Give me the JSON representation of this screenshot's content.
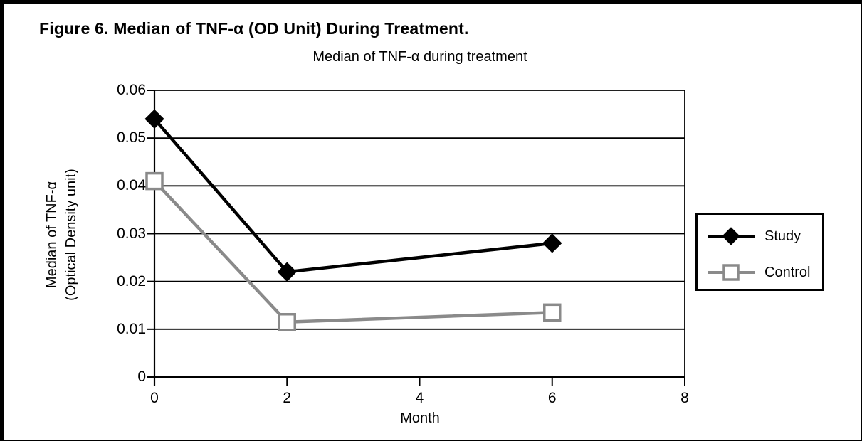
{
  "figure_title": "Figure 6. Median of TNF-α (OD Unit) During Treatment.",
  "chart_data": {
    "type": "line",
    "title": "Median of TNF-α during treatment",
    "xlabel": "Month",
    "ylabel_lines": [
      "Median of TNF-α",
      "(Optical Density unit)"
    ],
    "x": [
      0,
      2,
      6
    ],
    "series": [
      {
        "name": "Study",
        "values": [
          0.054,
          0.022,
          0.028
        ],
        "color": "#000000",
        "marker": "diamond",
        "marker_fill": "#000000"
      },
      {
        "name": "Control",
        "values": [
          0.041,
          0.0115,
          0.0135
        ],
        "color": "#8a8a8a",
        "marker": "square",
        "marker_fill": "#ffffff"
      }
    ],
    "xlim": [
      0,
      8
    ],
    "ylim": [
      0,
      0.06
    ],
    "x_ticks": [
      0,
      2,
      4,
      6,
      8
    ],
    "y_ticks": [
      0,
      0.01,
      0.02,
      0.03,
      0.04,
      0.05,
      0.06
    ],
    "grid": "horizontal",
    "gridline_color": "#000000",
    "axis_color": "#000000",
    "legend_position": "right"
  }
}
